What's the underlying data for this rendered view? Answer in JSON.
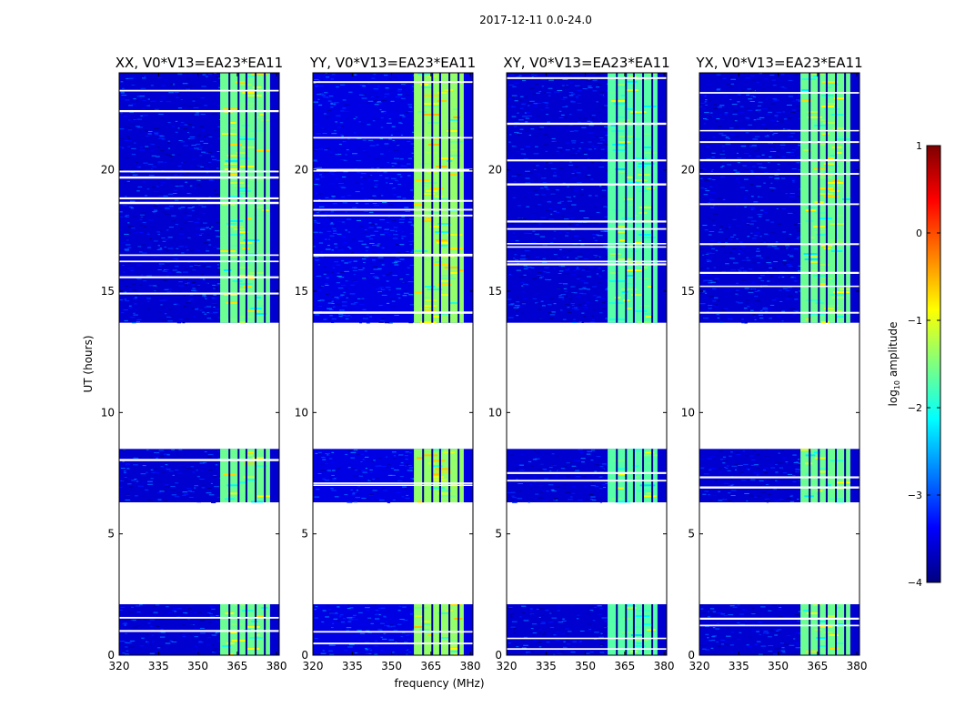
{
  "suptitle": "2017-12-11 0.0-24.0",
  "colors": {
    "jet": [
      "#00007f",
      "#0000ff",
      "#007fff",
      "#00ffff",
      "#7fff7f",
      "#ffff00",
      "#ff7f00",
      "#ff0000",
      "#7f0000"
    ],
    "axis": "#000000",
    "background": "#ffffff"
  },
  "colorbar": {
    "label": "log10 amplitude",
    "label_main": "log",
    "label_sub": "10",
    "label_rest": " amplitude",
    "range": [
      -4,
      1
    ],
    "ticks": [
      -4,
      -3,
      -2,
      -1,
      0,
      1
    ],
    "tick_labels": [
      "−4",
      "−3",
      "−2",
      "−1",
      "0",
      "1"
    ]
  },
  "chart_data": {
    "type": "heatmap",
    "x_unit": "MHz",
    "y_unit": "hours",
    "xlabel": "frequency (MHz)",
    "ylabel": "UT (hours)",
    "xlim": [
      320,
      381
    ],
    "ylim": [
      0,
      24
    ],
    "xticks": [
      320,
      335,
      350,
      365,
      380
    ],
    "yticks": [
      0,
      5,
      10,
      15,
      20
    ],
    "data_time_ranges": [
      [
        0,
        2.1
      ],
      [
        6.3,
        8.5
      ],
      [
        13.7,
        24
      ]
    ],
    "flagged_gaps_hours": [
      [
        2.1,
        6.3
      ],
      [
        8.5,
        13.7
      ]
    ],
    "high_band_mhz": [
      358.5,
      377.5
    ],
    "band_edge_lines_mhz": [
      362,
      365.5,
      368.5,
      372,
      375.5
    ],
    "panels": [
      {
        "title": "XX, V0*V13=EA23*EA11",
        "bg_level": -3.6,
        "band_level": -1.6
      },
      {
        "title": "YY, V0*V13=EA23*EA11",
        "bg_level": -3.5,
        "band_level": -1.4
      },
      {
        "title": "XY, V0*V13=EA23*EA11",
        "bg_level": -3.6,
        "band_level": -1.7
      },
      {
        "title": "YX, V0*V13=EA23*EA11",
        "bg_level": -3.6,
        "band_level": -1.6
      }
    ]
  }
}
